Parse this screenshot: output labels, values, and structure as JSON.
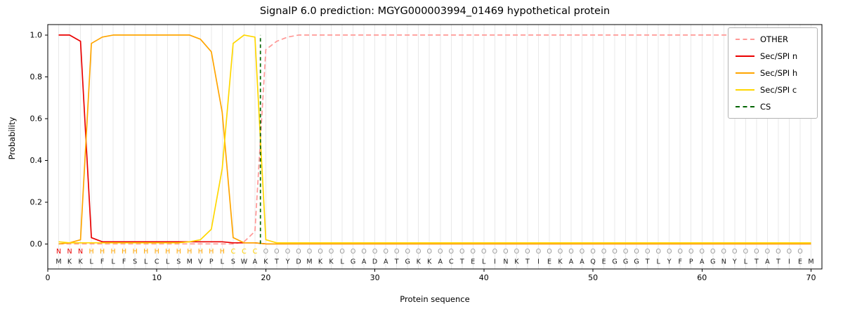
{
  "chart": {
    "title": "SignalP 6.0 prediction: MGYG000003994_01469 hypothetical protein",
    "xlabel": "Protein sequence",
    "ylabel": "Probability",
    "yticks": [
      "0.0",
      "0.2",
      "0.4",
      "0.6",
      "0.8",
      "1.0"
    ],
    "xticks": [
      0,
      10,
      20,
      30,
      40,
      50,
      60,
      70
    ]
  },
  "chart_data": {
    "type": "line",
    "title": "SignalP 6.0 prediction: MGYG000003994_01469 hypothetical protein",
    "xlabel": "Protein sequence",
    "ylabel": "Probability",
    "xlim": [
      0,
      71
    ],
    "ylim": [
      0.0,
      1.05
    ],
    "grid": true,
    "grid_color": "#e9e9e9",
    "legend_position": "upper right",
    "sequence": "MKKLFLFSLCLSMVPLSWAKTYDMKKLGADATGKKACTELINKTIEKAAQEGGGTLYFPAGNYLTATIEM",
    "region_labels": "NNNHHHHHHHHHHHHHCCCOOOOOOOOOOOOOOOOOOOOOOOOOOOOOOOOOOOOOOOOOOOOOOOOOO",
    "region_colors": {
      "N": "#ea0000",
      "H": "#ffa500",
      "C": "#ffce00",
      "O": "#999999"
    },
    "series": [
      {
        "name": "OTHER",
        "color": "#ff9896",
        "dashed": true,
        "values": [
          0,
          0,
          0,
          0,
          0,
          0,
          0,
          0,
          0,
          0,
          0,
          0,
          0,
          0,
          0,
          0,
          0,
          0.01,
          0.06,
          0.93,
          0.97,
          0.99,
          1,
          1,
          1,
          1,
          1,
          1,
          1,
          1,
          1,
          1,
          1,
          1,
          1,
          1,
          1,
          1,
          1,
          1,
          1,
          1,
          1,
          1,
          1,
          1,
          1,
          1,
          1,
          1,
          1,
          1,
          1,
          1,
          1,
          1,
          1,
          1,
          1,
          1,
          1,
          1,
          1,
          1,
          1,
          1,
          1,
          1,
          1,
          1
        ]
      },
      {
        "name": "Sec/SPI n",
        "color": "#ea0000",
        "dashed": false,
        "values": [
          1,
          1,
          0.97,
          0.03,
          0.01,
          0.01,
          0.01,
          0.01,
          0.01,
          0.01,
          0.01,
          0.01,
          0.01,
          0.01,
          0.01,
          0.01,
          0.005,
          0.005,
          0.005,
          0,
          0,
          0,
          0,
          0,
          0,
          0,
          0,
          0,
          0,
          0,
          0,
          0,
          0,
          0,
          0,
          0,
          0,
          0,
          0,
          0,
          0,
          0,
          0,
          0,
          0,
          0,
          0,
          0,
          0,
          0,
          0,
          0,
          0,
          0,
          0,
          0,
          0,
          0,
          0,
          0,
          0,
          0,
          0,
          0,
          0,
          0,
          0,
          0,
          0,
          0
        ]
      },
      {
        "name": "Sec/SPI h",
        "color": "#ffa500",
        "dashed": false,
        "values": [
          0,
          0.005,
          0.02,
          0.96,
          0.99,
          1,
          1,
          1,
          1,
          1,
          1,
          1,
          1,
          0.98,
          0.92,
          0.63,
          0.03,
          0.005,
          0.005,
          0,
          0,
          0,
          0,
          0,
          0,
          0,
          0,
          0,
          0,
          0,
          0,
          0,
          0,
          0,
          0,
          0,
          0,
          0,
          0,
          0,
          0,
          0,
          0,
          0,
          0,
          0,
          0,
          0,
          0,
          0,
          0,
          0,
          0,
          0,
          0,
          0,
          0,
          0,
          0,
          0,
          0,
          0,
          0,
          0,
          0,
          0,
          0,
          0,
          0,
          0
        ]
      },
      {
        "name": "Sec/SPI c",
        "color": "#ffd700",
        "dashed": false,
        "values": [
          0.01,
          0.005,
          0.005,
          0.005,
          0.005,
          0.005,
          0.005,
          0.005,
          0.005,
          0.005,
          0.005,
          0.005,
          0.01,
          0.02,
          0.07,
          0.36,
          0.96,
          1,
          0.99,
          0.02,
          0.005,
          0.005,
          0.005,
          0.005,
          0.005,
          0.005,
          0.005,
          0.005,
          0.005,
          0.005,
          0.005,
          0.005,
          0.005,
          0.005,
          0.005,
          0.005,
          0.005,
          0.005,
          0.005,
          0.005,
          0.005,
          0.005,
          0.005,
          0.005,
          0.005,
          0.005,
          0.005,
          0.005,
          0.005,
          0.005,
          0.005,
          0.005,
          0.005,
          0.005,
          0.005,
          0.005,
          0.005,
          0.005,
          0.005,
          0.005,
          0.005,
          0.005,
          0.005,
          0.005,
          0.005,
          0.005,
          0.005,
          0.005,
          0.005,
          0.005
        ]
      }
    ],
    "cs_line": {
      "name": "CS",
      "x": 19.5,
      "color": "#006400",
      "dashed": true
    }
  },
  "legend": {
    "entries": [
      {
        "label": "OTHER",
        "color": "#ff9896",
        "dashed": true
      },
      {
        "label": "Sec/SPI n",
        "color": "#ea0000",
        "dashed": false
      },
      {
        "label": "Sec/SPI h",
        "color": "#ffa500",
        "dashed": false
      },
      {
        "label": "Sec/SPI c",
        "color": "#ffd700",
        "dashed": false
      },
      {
        "label": "CS",
        "color": "#006400",
        "dashed": true
      }
    ]
  }
}
